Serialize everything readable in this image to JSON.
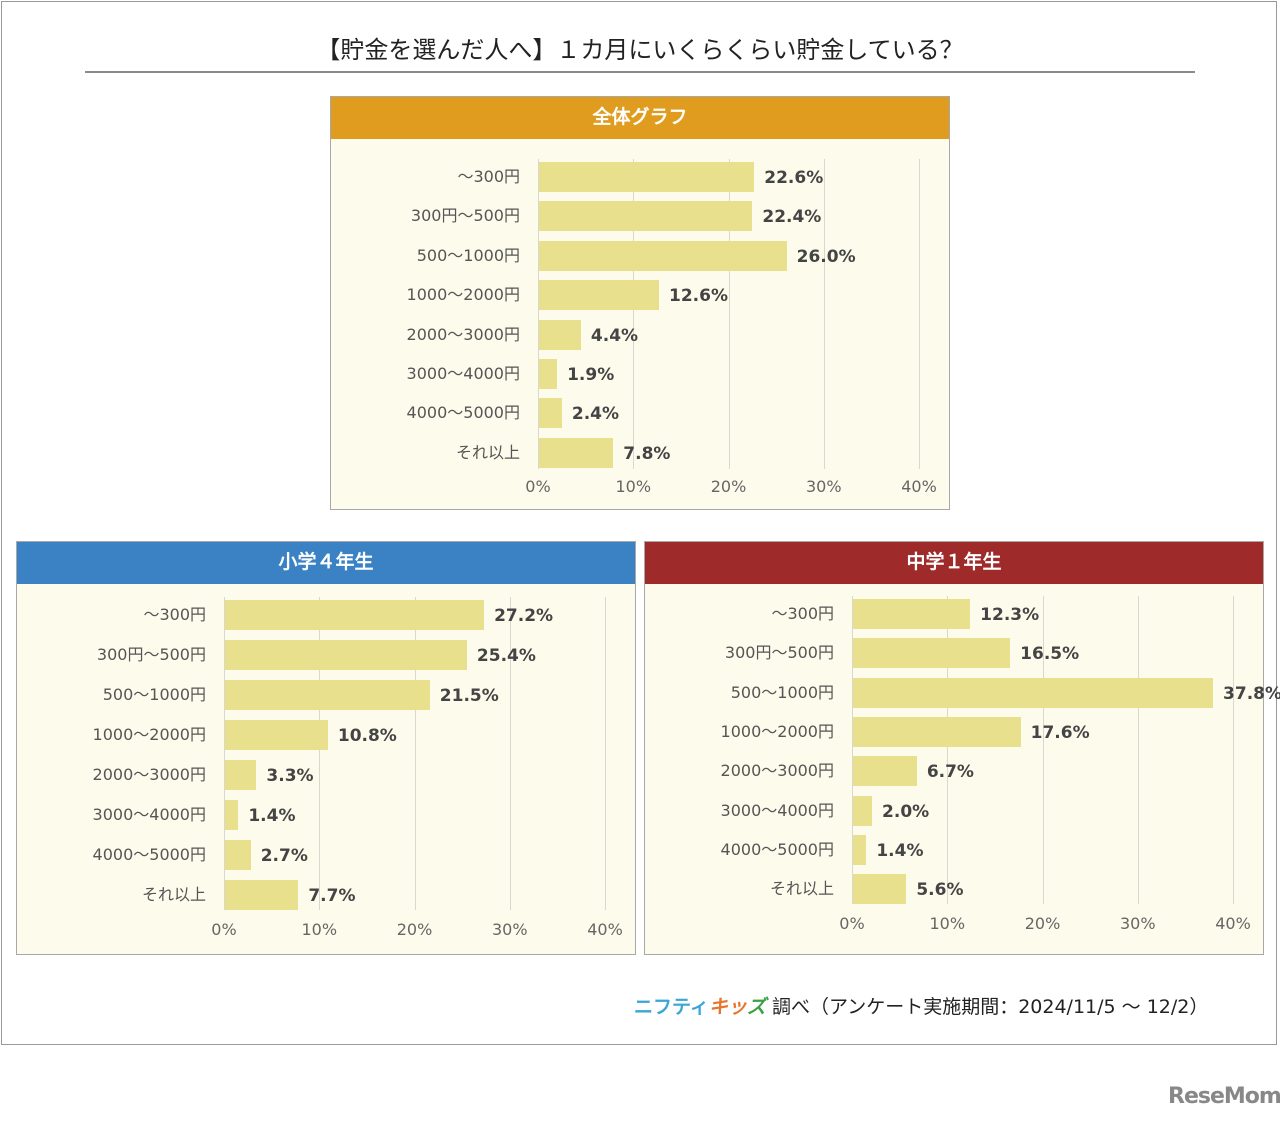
{
  "title": "【貯金を選んだ人へ】１カ月にいくらくらい貯金している？",
  "footer": {
    "brand_part1": "ニフティ",
    "brand_part2": "キッ",
    "brand_part3": "ズ",
    "text": "調べ（アンケート実施期間：2024/11/5 ～ 12/2）"
  },
  "watermark": "ReseMom",
  "chart_data": [
    {
      "type": "bar",
      "orientation": "horizontal",
      "title": "全体グラフ",
      "header_color": "#e09c1e",
      "bar_color": "#e8e08c",
      "categories": [
        "～300円",
        "300円～500円",
        "500～1000円",
        "1000～2000円",
        "2000～3000円",
        "3000～4000円",
        "4000～5000円",
        "それ以上"
      ],
      "values": [
        22.6,
        22.4,
        26.0,
        12.6,
        4.4,
        1.9,
        2.4,
        7.8
      ],
      "value_labels": [
        "22.6%",
        "22.4%",
        "26.0%",
        "12.6%",
        "4.4%",
        "1.9%",
        "2.4%",
        "7.8%"
      ],
      "xlim": [
        0,
        40
      ],
      "xticks": [
        "0%",
        "10%",
        "20%",
        "30%",
        "40%"
      ],
      "grid": true
    },
    {
      "type": "bar",
      "orientation": "horizontal",
      "title": "小学４年生",
      "header_color": "#3a82c4",
      "bar_color": "#e8e08c",
      "categories": [
        "～300円",
        "300円～500円",
        "500～1000円",
        "1000～2000円",
        "2000～3000円",
        "3000～4000円",
        "4000～5000円",
        "それ以上"
      ],
      "values": [
        27.2,
        25.4,
        21.5,
        10.8,
        3.3,
        1.4,
        2.7,
        7.7
      ],
      "value_labels": [
        "27.2%",
        "25.4%",
        "21.5%",
        "10.8%",
        "3.3%",
        "1.4%",
        "2.7%",
        "7.7%"
      ],
      "xlim": [
        0,
        40
      ],
      "xticks": [
        "0%",
        "10%",
        "20%",
        "30%",
        "40%"
      ],
      "grid": true
    },
    {
      "type": "bar",
      "orientation": "horizontal",
      "title": "中学１年生",
      "header_color": "#9e2a2a",
      "bar_color": "#e8e08c",
      "categories": [
        "～300円",
        "300円～500円",
        "500～1000円",
        "1000～2000円",
        "2000～3000円",
        "3000～4000円",
        "4000～5000円",
        "それ以上"
      ],
      "values": [
        12.3,
        16.5,
        37.8,
        17.6,
        6.7,
        2.0,
        1.4,
        5.6
      ],
      "value_labels": [
        "12.3%",
        "16.5%",
        "37.8%",
        "17.6%",
        "6.7%",
        "2.0%",
        "1.4%",
        "5.6%"
      ],
      "xlim": [
        0,
        40
      ],
      "xticks": [
        "0%",
        "10%",
        "20%",
        "30%",
        "40%"
      ],
      "grid": true
    }
  ]
}
